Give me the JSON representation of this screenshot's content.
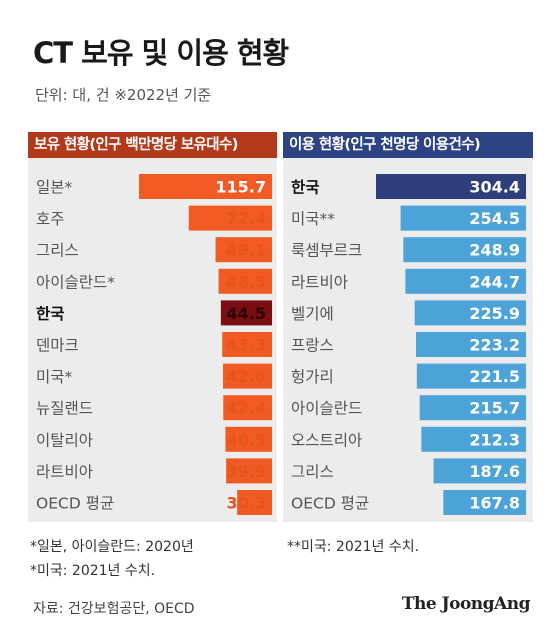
{
  "header": {
    "title": "CT 보유 및 이용 현황",
    "subtitle": "단위: 대, 건   ※2022년 기준"
  },
  "colors": {
    "left_header": "#b23a1a",
    "left_bar": "#f15a22",
    "left_highlight_bar": "#7a0e12",
    "left_value_text": "#e8541e",
    "right_header": "#2e4384",
    "right_bar": "#4ca3d8",
    "right_highlight_bar": "#2e3f7c"
  },
  "chart_data": [
    {
      "type": "bar",
      "orientation": "horizontal",
      "title": "보유 현황(인구 백만명당 보유대수)",
      "categories": [
        "일본*",
        "호주",
        "그리스",
        "아이슬란드*",
        "한국",
        "덴마크",
        "미국*",
        "뉴질랜드",
        "이탈리아",
        "라트비아",
        "OECD 평균"
      ],
      "values": [
        115.7,
        72.4,
        49.1,
        46.5,
        44.5,
        43.3,
        42.6,
        42.4,
        40.5,
        39.9,
        30.3
      ],
      "highlight": "한국"
    },
    {
      "type": "bar",
      "orientation": "horizontal",
      "title": "이용 현황(인구 천명당 이용건수)",
      "categories": [
        "한국",
        "미국**",
        "룩셈부르크",
        "라트비아",
        "벨기에",
        "프랑스",
        "헝가리",
        "아이슬란드",
        "오스트리아",
        "그리스",
        "OECD 평균"
      ],
      "values": [
        304.4,
        254.5,
        248.9,
        244.7,
        225.9,
        223.2,
        221.5,
        215.7,
        212.3,
        187.6,
        167.8
      ],
      "highlight": "한국"
    }
  ],
  "notes": {
    "left_1": "*일본, 아이슬란드: 2020년",
    "left_2": "*미국: 2021년 수치.",
    "right_1": "**미국: 2021년 수치."
  },
  "footer": {
    "source": "자료: 건강보험공단, OECD",
    "brand": "The JoongAng"
  }
}
